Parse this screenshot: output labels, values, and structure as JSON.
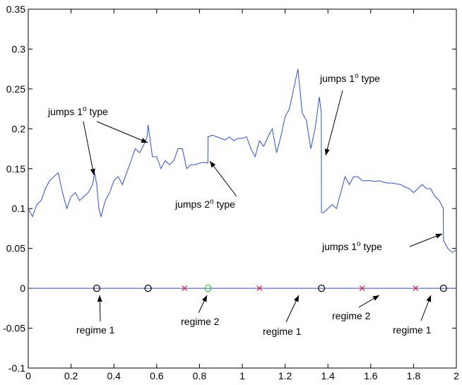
{
  "chart_data": {
    "type": "line",
    "xlim": [
      0,
      2
    ],
    "ylim": [
      -0.1,
      0.35
    ],
    "xticks": [
      0,
      0.2,
      0.4,
      0.6,
      0.8,
      1,
      1.2,
      1.4,
      1.6,
      1.8,
      2
    ],
    "yticks": [
      -0.1,
      -0.05,
      0,
      0.05,
      0.1,
      0.15,
      0.2,
      0.25,
      0.3,
      0.35
    ],
    "series": [
      {
        "type": "line",
        "color": "#2b4fe0",
        "x": [
          0,
          0.02,
          0.04,
          0.06,
          0.08,
          0.1,
          0.12,
          0.14,
          0.16,
          0.18,
          0.2,
          0.22,
          0.24,
          0.26,
          0.28,
          0.3,
          0.31,
          0.32,
          0.33,
          0.34,
          0.36,
          0.38,
          0.4,
          0.42,
          0.44,
          0.46,
          0.48,
          0.5,
          0.52,
          0.54,
          0.555,
          0.56,
          0.57,
          0.58,
          0.6,
          0.62,
          0.64,
          0.66,
          0.68,
          0.7,
          0.72,
          0.74,
          0.76,
          0.78,
          0.8,
          0.82,
          0.839,
          0.84,
          0.86,
          0.88,
          0.9,
          0.92,
          0.94,
          0.96,
          0.98,
          1.0,
          1.02,
          1.04,
          1.06,
          1.08,
          1.1,
          1.12,
          1.14,
          1.16,
          1.18,
          1.2,
          1.22,
          1.24,
          1.26,
          1.28,
          1.3,
          1.32,
          1.34,
          1.36,
          1.369,
          1.37,
          1.38,
          1.4,
          1.42,
          1.44,
          1.46,
          1.48,
          1.5,
          1.52,
          1.54,
          1.56,
          1.58,
          1.6,
          1.62,
          1.64,
          1.66,
          1.68,
          1.7,
          1.72,
          1.74,
          1.76,
          1.78,
          1.8,
          1.82,
          1.84,
          1.86,
          1.88,
          1.9,
          1.92,
          1.939,
          1.94,
          1.96,
          1.98,
          2.0
        ],
        "values": [
          0.1,
          0.09,
          0.105,
          0.11,
          0.125,
          0.135,
          0.14,
          0.145,
          0.12,
          0.1,
          0.115,
          0.12,
          0.11,
          0.115,
          0.12,
          0.13,
          0.145,
          0.13,
          0.1,
          0.09,
          0.11,
          0.12,
          0.135,
          0.14,
          0.13,
          0.145,
          0.16,
          0.175,
          0.17,
          0.18,
          0.19,
          0.205,
          0.185,
          0.165,
          0.165,
          0.15,
          0.16,
          0.155,
          0.16,
          0.175,
          0.175,
          0.15,
          0.155,
          0.155,
          0.157,
          0.158,
          0.157,
          0.19,
          0.192,
          0.19,
          0.188,
          0.186,
          0.19,
          0.185,
          0.188,
          0.188,
          0.19,
          0.175,
          0.165,
          0.185,
          0.178,
          0.19,
          0.2,
          0.17,
          0.19,
          0.215,
          0.225,
          0.25,
          0.275,
          0.22,
          0.21,
          0.175,
          0.2,
          0.24,
          0.22,
          0.095,
          0.095,
          0.1,
          0.105,
          0.1,
          0.12,
          0.14,
          0.13,
          0.14,
          0.14,
          0.135,
          0.135,
          0.135,
          0.134,
          0.135,
          0.133,
          0.132,
          0.132,
          0.131,
          0.13,
          0.127,
          0.125,
          0.12,
          0.125,
          0.13,
          0.125,
          0.125,
          0.115,
          0.11,
          0.1,
          0.06,
          0.05,
          0.045,
          0.048
        ]
      },
      {
        "type": "line",
        "color": "#2b4fe0",
        "x": [
          0,
          2
        ],
        "values": [
          0,
          0
        ]
      },
      {
        "type": "scatter",
        "marker": "o",
        "color": "#000000",
        "x": [
          0.32,
          0.56,
          1.37,
          1.94
        ],
        "values": [
          0,
          0,
          0,
          0
        ]
      },
      {
        "type": "scatter",
        "marker": "x",
        "color": "#e0203a",
        "x": [
          0.73,
          1.08,
          1.56,
          1.81
        ],
        "values": [
          0,
          0,
          0,
          0
        ]
      },
      {
        "type": "scatter",
        "marker": "o",
        "color": "#3cc83c",
        "x": [
          0.84
        ],
        "values": [
          0
        ]
      }
    ],
    "annotations": [
      {
        "text": [
          "jumps 1",
          "o",
          " type"
        ]
      },
      {
        "text": [
          "jumps 2",
          "o",
          " type"
        ]
      },
      {
        "text": [
          "jumps 1",
          "o",
          " type"
        ]
      },
      {
        "text": [
          "jumps 1",
          "o",
          " type"
        ]
      },
      {
        "text": [
          "regime 1"
        ]
      },
      {
        "text": [
          "regime 2"
        ]
      },
      {
        "text": [
          "regime 1"
        ]
      },
      {
        "text": [
          "regime 2"
        ]
      },
      {
        "text": [
          "regime 1"
        ]
      }
    ]
  }
}
